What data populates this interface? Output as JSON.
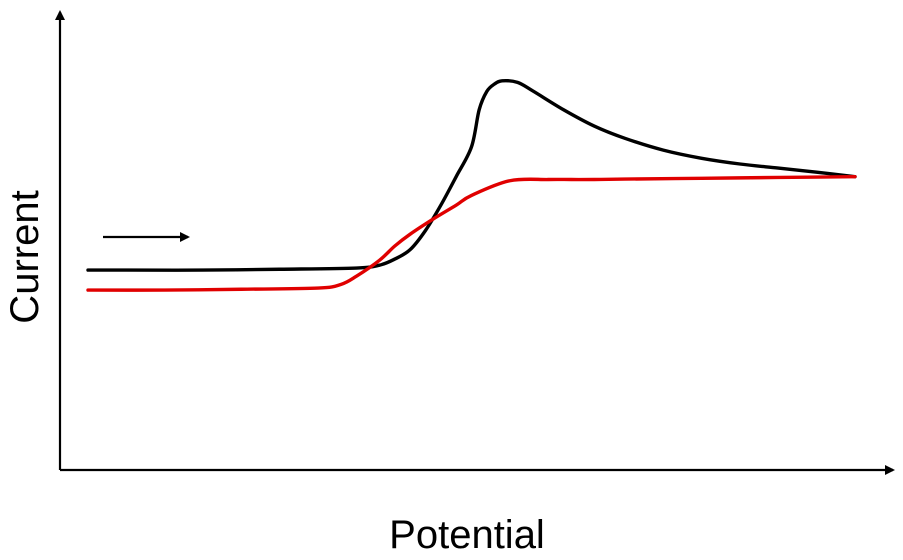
{
  "chart_data": {
    "type": "line",
    "title": "",
    "xlabel": "Potential",
    "ylabel": "Current",
    "xlim": [
      0,
      100
    ],
    "ylim": [
      0,
      100
    ],
    "grid": false,
    "legend": "none",
    "ticks": false,
    "annotations": [
      {
        "type": "arrow",
        "direction": "right",
        "meaning": "scan direction"
      }
    ],
    "series": [
      {
        "color": "#000000",
        "x": [
          0,
          5,
          15,
          25,
          35,
          38,
          40,
          42,
          44,
          46,
          48,
          50,
          51,
          52,
          53,
          54,
          56,
          58,
          62,
          66,
          70,
          75,
          80,
          85,
          90,
          95,
          100
        ],
        "y": [
          49,
          49,
          49,
          49.2,
          49.5,
          50.2,
          51.7,
          54.0,
          58.7,
          64.9,
          71.9,
          79.2,
          88.3,
          92.8,
          94.6,
          95.4,
          95.0,
          92.9,
          88.3,
          84.3,
          81.3,
          78.4,
          76.4,
          75.0,
          74.0,
          73.0,
          71.9
        ]
      },
      {
        "color": "#e00000",
        "x": [
          0,
          10,
          20,
          30,
          33,
          35,
          38,
          40,
          42,
          45,
          48,
          50,
          55,
          60,
          63,
          66,
          70,
          80,
          90,
          100
        ],
        "y": [
          44.1,
          44.1,
          44.3,
          44.6,
          45.5,
          47.5,
          51.4,
          54.9,
          57.8,
          61.5,
          64.9,
          67.3,
          70.9,
          71.2,
          71.2,
          71.2,
          71.3,
          71.5,
          71.7,
          71.9
        ]
      }
    ]
  }
}
